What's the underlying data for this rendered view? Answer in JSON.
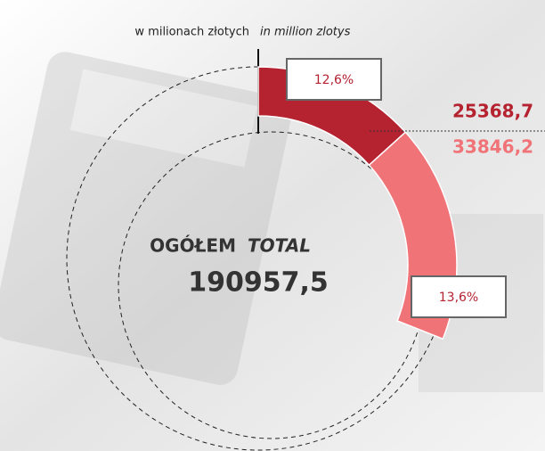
{
  "chart_data": {
    "type": "donut",
    "title": "w milionach złotych",
    "subtitle": "in million zlotys",
    "center_label": "OGÓŁEM",
    "center_label_italic": "TOTAL",
    "total": {
      "value": 190957.5,
      "label": "190957,5"
    },
    "values": [
      25368.7,
      33846.2
    ],
    "value_labels": [
      "25368,7",
      "33846,2"
    ],
    "colors": [
      "#b52230",
      "#f07378"
    ],
    "shares": [
      {
        "value": 12.6,
        "label": "12,6%"
      },
      {
        "value": 13.6,
        "label": "13,6%"
      }
    ]
  }
}
